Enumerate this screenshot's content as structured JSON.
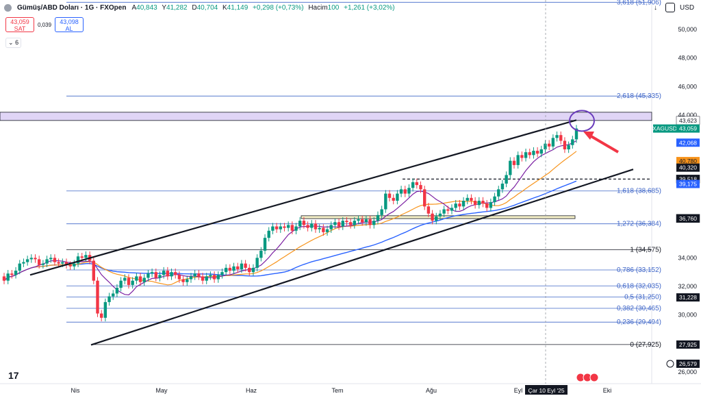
{
  "header": {
    "symbol": "Gümüş/ABD Doları · 1G · FXOpen",
    "ohlc": [
      {
        "k": "A",
        "v": "40,843"
      },
      {
        "k": "Y",
        "v": "41,282"
      },
      {
        "k": "D",
        "v": "40,704"
      },
      {
        "k": "K",
        "v": "41,149"
      }
    ],
    "change": "+0,298 (+0,73%)",
    "volume_label": "Hacim",
    "volume": "100",
    "volume_change": "+1,261 (+3,02%)"
  },
  "trade": {
    "sell_price": "43,059",
    "sell_label": "SAT",
    "spread": "0,039",
    "buy_price": "43,098",
    "buy_label": "AL"
  },
  "indicators_count": "6",
  "top_right": {
    "arrow_down": "↓",
    "currency": "USD"
  },
  "colors": {
    "up": "#089981",
    "down": "#f23645",
    "ma_fast": "#7b1fa2",
    "ma_mid": "#f7931a",
    "ma_slow": "#2962ff",
    "fib": "#3f66c8",
    "zone": "#e0d5f6",
    "accent": "#2962ff"
  },
  "chart_data": {
    "type": "candlestick",
    "x_ticks": [
      "Nis",
      "May",
      "Haz",
      "Tem",
      "Ağu",
      "Eyl",
      "Eki"
    ],
    "crosshair_date": "Çar 10 Eyl '25",
    "y_ticks": [
      "50,000",
      "48,000",
      "46,000",
      "44,000",
      "34,000",
      "32,000",
      "30,000",
      "26,000"
    ],
    "ylim": [
      25.4,
      51.0
    ],
    "fib_levels": [
      {
        "ratio": "3,618",
        "value": "51,906",
        "price": 51.906
      },
      {
        "ratio": "2,618",
        "value": "45,335",
        "price": 45.335
      },
      {
        "ratio": "1,618",
        "value": "38,685",
        "price": 38.685
      },
      {
        "ratio": "1,272",
        "value": "36,384",
        "price": 36.384
      },
      {
        "ratio": "1",
        "value": "34,575",
        "price": 34.575
      },
      {
        "ratio": "0,786",
        "value": "33,152",
        "price": 33.152
      },
      {
        "ratio": "0,618",
        "value": "32,035",
        "price": 32.035
      },
      {
        "ratio": "0,5",
        "value": "31,250",
        "price": 31.25
      },
      {
        "ratio": "0,382",
        "value": "30,465",
        "price": 30.465
      },
      {
        "ratio": "0,236",
        "value": "29,494",
        "price": 29.494
      },
      {
        "ratio": "0",
        "value": "27,925",
        "price": 27.925
      }
    ],
    "price_tags": [
      {
        "text": "43,623",
        "price": 43.623,
        "bg": "#ffffff",
        "fg": "#131722"
      },
      {
        "text": "XAGUSD",
        "price": 43.059,
        "bg": "#089981",
        "fg": "#ffffff",
        "left": true
      },
      {
        "text": "43,059",
        "price": 43.059,
        "bg": "#089981",
        "fg": "#ffffff"
      },
      {
        "text": "42,068",
        "price": 42.068,
        "bg": "#2962ff",
        "fg": "#ffffff"
      },
      {
        "text": "40,780",
        "price": 40.78,
        "bg": "#f7931a",
        "fg": "#131722"
      },
      {
        "text": "40,320",
        "price": 40.32,
        "bg": "#131722",
        "fg": "#ffffff"
      },
      {
        "text": "39,518",
        "price": 39.518,
        "bg": "#ffffff",
        "fg": "#131722"
      },
      {
        "text": "39,518",
        "price": 39.518,
        "bg": "#131722",
        "fg": "#ffffff"
      },
      {
        "text": "39,175",
        "price": 39.175,
        "bg": "#2962ff",
        "fg": "#ffffff"
      },
      {
        "text": "36,760",
        "price": 36.76,
        "bg": "#ffffff",
        "fg": "#131722"
      },
      {
        "text": "36,760",
        "price": 36.76,
        "bg": "#131722",
        "fg": "#ffffff"
      },
      {
        "text": "31,228",
        "price": 31.228,
        "bg": "#131722",
        "fg": "#ffffff"
      },
      {
        "text": "27,925",
        "price": 27.925,
        "bg": "#131722",
        "fg": "#ffffff"
      },
      {
        "text": "26,579",
        "price": 26.579,
        "bg": "#131722",
        "fg": "#ffffff"
      }
    ],
    "resistance_zone": {
      "top": 44.2,
      "bottom": 43.623
    },
    "dashed_level": 39.518,
    "box": {
      "top": 36.95,
      "bottom": 36.75
    },
    "channel": {
      "upper": [
        [
          0,
          32.8
        ],
        [
          1,
          43.65
        ]
      ],
      "lower": [
        [
          0,
          27.9
        ],
        [
          1,
          40.2
        ]
      ]
    },
    "candles_open": [
      32.7,
      32.4,
      32.9,
      32.8,
      33.1,
      33.6,
      33.7,
      33.9,
      34.0,
      33.9,
      33.5,
      33.6,
      33.9,
      34.0,
      33.7,
      33.6,
      33.7,
      33.5,
      33.4,
      33.6,
      34.1,
      34.0,
      34.2,
      33.8,
      32.4,
      30.1,
      29.8,
      30.9,
      31.3,
      31.5,
      31.9,
      32.4,
      32.6,
      32.1,
      32.4,
      32.7,
      32.3,
      32.6,
      32.9,
      33.0,
      32.6,
      32.8,
      33.1,
      32.7,
      33.0,
      32.8,
      32.5,
      32.3,
      32.5,
      32.7,
      32.9,
      32.7,
      32.4,
      32.7,
      32.8,
      32.5,
      32.8,
      33.0,
      33.3,
      33.1,
      33.4,
      33.2,
      33.6,
      33.3,
      33.0,
      33.3,
      34.0,
      34.5,
      35.4,
      35.9,
      36.2,
      36.0,
      36.2,
      36.1,
      36.3,
      35.9,
      36.2,
      36.6,
      36.3,
      36.1,
      36.4,
      36.0,
      36.1,
      35.8,
      36.0,
      36.3,
      36.5,
      36.2,
      36.6,
      36.5,
      36.3,
      36.6,
      36.7,
      36.5,
      36.7,
      36.3,
      36.6,
      37.0,
      37.4,
      38.5,
      38.2,
      38.0,
      38.5,
      38.8,
      38.5,
      38.9,
      39.3,
      39.1,
      38.8,
      37.6,
      37.1,
      36.6,
      36.9,
      37.1,
      37.4,
      37.3,
      37.5,
      37.8,
      37.6,
      38.0,
      38.2,
      38.0,
      37.7,
      38.0,
      37.8,
      37.5,
      37.9,
      38.3,
      38.8,
      39.2,
      39.8,
      40.8,
      40.5,
      41.2,
      41.0,
      41.4,
      41.2,
      41.5,
      41.3,
      41.6,
      42.0,
      41.8,
      42.4,
      42.6,
      42.2,
      41.6,
      41.9,
      42.3
    ],
    "candles_close": [
      32.4,
      32.9,
      32.8,
      33.1,
      33.6,
      33.7,
      33.9,
      34.0,
      33.9,
      33.5,
      33.6,
      33.9,
      34.0,
      33.7,
      33.6,
      33.7,
      33.5,
      33.4,
      33.6,
      34.1,
      34.0,
      34.2,
      33.8,
      32.4,
      30.1,
      29.8,
      30.9,
      31.3,
      31.5,
      31.9,
      32.4,
      32.6,
      32.1,
      32.4,
      32.7,
      32.3,
      32.6,
      32.9,
      33.0,
      32.6,
      32.8,
      33.1,
      32.7,
      33.0,
      32.8,
      32.5,
      32.3,
      32.5,
      32.7,
      32.9,
      32.7,
      32.4,
      32.7,
      32.8,
      32.5,
      32.8,
      33.0,
      33.3,
      33.1,
      33.4,
      33.2,
      33.6,
      33.3,
      33.0,
      33.3,
      34.0,
      34.5,
      35.4,
      35.9,
      36.2,
      36.0,
      36.2,
      36.1,
      36.3,
      35.9,
      36.2,
      36.6,
      36.3,
      36.1,
      36.4,
      36.0,
      36.1,
      35.8,
      36.0,
      36.3,
      36.5,
      36.2,
      36.6,
      36.5,
      36.3,
      36.6,
      36.7,
      36.5,
      36.7,
      36.3,
      36.6,
      37.0,
      37.4,
      38.5,
      38.2,
      38.0,
      38.5,
      38.8,
      38.5,
      38.9,
      39.3,
      39.1,
      38.8,
      37.6,
      37.1,
      36.6,
      36.9,
      37.1,
      37.4,
      37.3,
      37.5,
      37.8,
      37.6,
      38.0,
      38.2,
      38.0,
      37.7,
      38.0,
      37.8,
      37.5,
      37.9,
      38.3,
      38.8,
      39.2,
      39.8,
      40.8,
      40.5,
      41.2,
      41.0,
      41.4,
      41.2,
      41.5,
      41.3,
      41.6,
      42.0,
      41.8,
      42.4,
      42.6,
      42.2,
      41.6,
      41.9,
      42.3,
      43.06
    ]
  }
}
